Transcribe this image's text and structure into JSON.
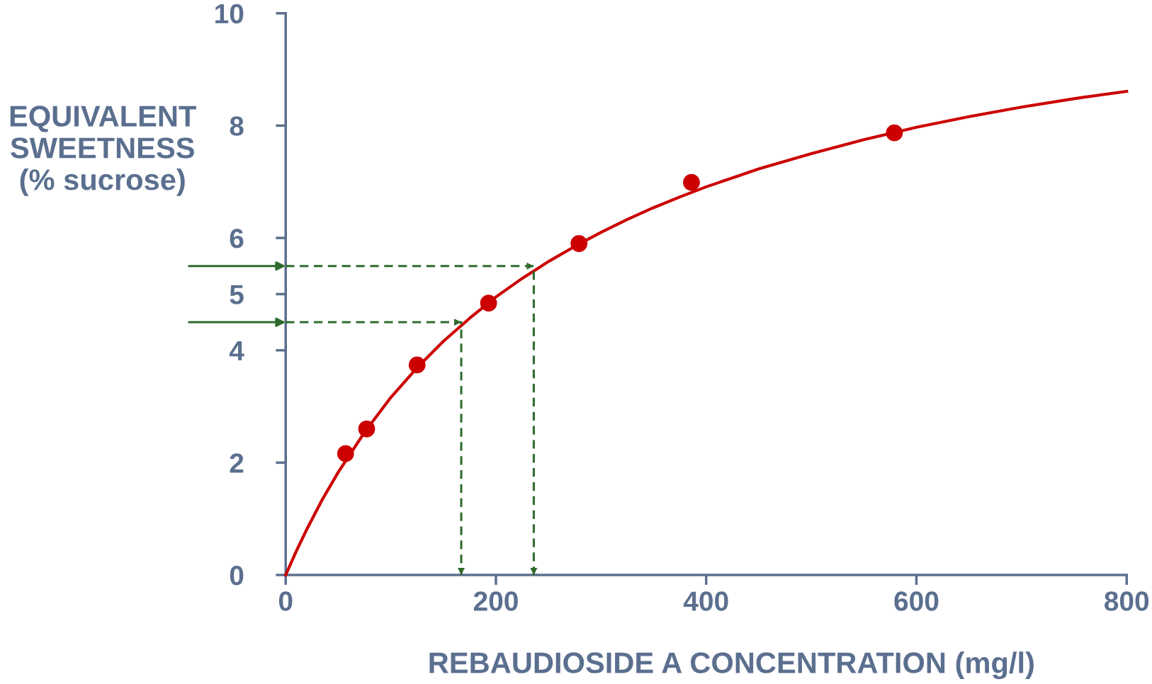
{
  "chart_data": {
    "type": "scatter",
    "xlabel": "REBAUDIOSIDE A CONCENTRATION (mg/l)",
    "ylabel": "EQUIVALENT\nSWEETNESS\n(% sucrose)",
    "xlim": [
      0,
      800
    ],
    "xticks": [
      0,
      200,
      400,
      600,
      800
    ],
    "ylim": [
      0,
      10
    ],
    "yticks": [
      0,
      2,
      4,
      5,
      6,
      8,
      10
    ],
    "grid": false,
    "legend": false,
    "series": [
      {
        "color": "#cc0000",
        "marker": "circle",
        "x": [
          57,
          77,
          125,
          193,
          279,
          386,
          579
        ],
        "values": [
          2.16,
          2.6,
          3.74,
          4.84,
          5.9,
          6.99,
          7.87
        ]
      },
      {
        "type": "line",
        "color": "#cc0000",
        "line_style": "solid",
        "x": [
          0,
          10,
          20,
          35,
          50,
          75,
          100,
          125,
          150,
          175,
          200,
          225,
          250,
          275,
          300,
          325,
          350,
          375,
          400,
          425,
          450,
          500,
          550,
          600,
          650,
          700,
          750,
          800
        ],
        "values": [
          0,
          0.42,
          0.81,
          1.35,
          1.83,
          2.54,
          3.16,
          3.69,
          4.16,
          4.57,
          4.95,
          5.28,
          5.58,
          5.85,
          6.1,
          6.33,
          6.54,
          6.73,
          6.91,
          7.07,
          7.23,
          7.5,
          7.75,
          7.97,
          8.16,
          8.33,
          8.48,
          8.61
        ]
      },
      {
        "type": "line",
        "color": "#2e6b2e",
        "line_style": "dashed",
        "x": [
          0,
          167,
          167
        ],
        "values": [
          4.5,
          4.5,
          0
        ]
      },
      {
        "type": "line",
        "color": "#2e6b2e",
        "line_style": "dashed",
        "x": [
          0,
          236,
          236
        ],
        "values": [
          5.5,
          5.5,
          0
        ]
      }
    ]
  }
}
